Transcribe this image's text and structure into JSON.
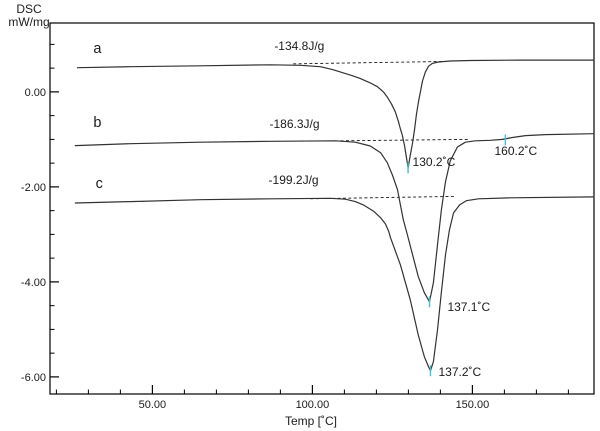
{
  "chart_data": {
    "type": "line",
    "title": "",
    "ylabel_line1": "DSC",
    "ylabel_line2": "mW/mg",
    "xlabel": "Temp [˚C]",
    "axes": {
      "xlim": [
        18,
        188
      ],
      "ylim": [
        -6.36,
        1.45
      ],
      "x_major_ticks": [
        {
          "t": 50,
          "label": "50.00"
        },
        {
          "t": 100,
          "label": "100.00"
        },
        {
          "t": 150,
          "label": "150.00"
        }
      ],
      "x_minor": {
        "from": 20,
        "to": 180,
        "step": 10
      },
      "y_major_ticks": [
        {
          "v": 0,
          "label": "0.00"
        },
        {
          "v": -2,
          "label": "-2.00"
        },
        {
          "v": -4,
          "label": "-4.00"
        },
        {
          "v": -6,
          "label": "-6.00"
        }
      ],
      "y_minor": {
        "from": -6,
        "to": 1,
        "step": 0.5
      },
      "grid": false
    },
    "series": [
      {
        "name": "a",
        "enthalpy": "-134.8J/g",
        "peak": "130.2˚C",
        "points": [
          [
            26.6,
            0.51
          ],
          [
            43.1,
            0.53
          ],
          [
            65,
            0.55
          ],
          [
            86.9,
            0.57
          ],
          [
            96.3,
            0.56
          ],
          [
            102.5,
            0.53
          ],
          [
            106.3,
            0.47
          ],
          [
            109.7,
            0.4
          ],
          [
            112.5,
            0.34
          ],
          [
            115,
            0.28
          ],
          [
            118.1,
            0.19
          ],
          [
            120.3,
            0.11
          ],
          [
            122.2,
            0.0
          ],
          [
            123.4,
            -0.11
          ],
          [
            124.7,
            -0.25
          ],
          [
            125.9,
            -0.42
          ],
          [
            126.9,
            -0.63
          ],
          [
            127.5,
            -0.78
          ],
          [
            128.1,
            -0.91
          ],
          [
            128.8,
            -1.14
          ],
          [
            129.4,
            -1.39
          ],
          [
            129.9,
            -1.6
          ],
          [
            130.6,
            -1.33
          ],
          [
            131.3,
            -1.07
          ],
          [
            131.9,
            -0.8
          ],
          [
            132.5,
            -0.48
          ],
          [
            133.1,
            -0.23
          ],
          [
            133.8,
            0.02
          ],
          [
            134.4,
            0.23
          ],
          [
            135.3,
            0.42
          ],
          [
            136.3,
            0.54
          ],
          [
            137.5,
            0.6
          ],
          [
            139.4,
            0.63
          ],
          [
            143.1,
            0.65
          ],
          [
            149.4,
            0.66
          ],
          [
            165,
            0.67
          ],
          [
            188,
            0.67
          ]
        ]
      },
      {
        "name": "b",
        "enthalpy": "-186.3J/g",
        "peak": "137.1˚C",
        "transition": "160.2˚C",
        "points": [
          [
            25.9,
            -1.13
          ],
          [
            43.1,
            -1.09
          ],
          [
            65,
            -1.06
          ],
          [
            86.9,
            -1.04
          ],
          [
            107.2,
            -1.03
          ],
          [
            113.4,
            -1.06
          ],
          [
            118.1,
            -1.14
          ],
          [
            121.3,
            -1.28
          ],
          [
            123.4,
            -1.49
          ],
          [
            125,
            -1.75
          ],
          [
            126.6,
            -2.06
          ],
          [
            127.5,
            -2.38
          ],
          [
            128.4,
            -2.69
          ],
          [
            129.7,
            -3.01
          ],
          [
            131.3,
            -3.43
          ],
          [
            133.1,
            -3.89
          ],
          [
            135,
            -4.23
          ],
          [
            136.6,
            -4.42
          ],
          [
            137.8,
            -4.02
          ],
          [
            139.1,
            -3.22
          ],
          [
            140.3,
            -2.48
          ],
          [
            141.6,
            -1.89
          ],
          [
            143.1,
            -1.45
          ],
          [
            145.3,
            -1.16
          ],
          [
            147.8,
            -1.06
          ],
          [
            150.9,
            -1.03
          ],
          [
            155.6,
            -1.02
          ],
          [
            159.4,
            -1.0
          ],
          [
            162.5,
            -0.96
          ],
          [
            166.6,
            -0.92
          ],
          [
            172.8,
            -0.9
          ],
          [
            188,
            -0.88
          ]
        ]
      },
      {
        "name": "c",
        "enthalpy": "-199.2J/g",
        "peak": "137.2˚C",
        "points": [
          [
            25.9,
            -2.34
          ],
          [
            43.1,
            -2.31
          ],
          [
            65,
            -2.27
          ],
          [
            86.9,
            -2.25
          ],
          [
            105.6,
            -2.24
          ],
          [
            110.3,
            -2.26
          ],
          [
            113.4,
            -2.31
          ],
          [
            115.9,
            -2.38
          ],
          [
            119.1,
            -2.51
          ],
          [
            121.3,
            -2.65
          ],
          [
            122.8,
            -2.78
          ],
          [
            123.8,
            -2.93
          ],
          [
            124.4,
            -3.07
          ],
          [
            127.5,
            -3.64
          ],
          [
            130.6,
            -4.38
          ],
          [
            133.1,
            -5.12
          ],
          [
            135,
            -5.58
          ],
          [
            136.3,
            -5.79
          ],
          [
            136.9,
            -5.87
          ],
          [
            137.8,
            -5.68
          ],
          [
            139.1,
            -5.01
          ],
          [
            140.3,
            -4.21
          ],
          [
            141.6,
            -3.43
          ],
          [
            142.8,
            -2.91
          ],
          [
            144.1,
            -2.55
          ],
          [
            146,
            -2.38
          ],
          [
            148.1,
            -2.29
          ],
          [
            151.9,
            -2.25
          ],
          [
            161.9,
            -2.23
          ],
          [
            188,
            -2.21
          ]
        ]
      }
    ],
    "baselines": [
      {
        "series": "a",
        "from": [
          94,
          0.59
        ],
        "to": [
          141,
          0.64
        ]
      },
      {
        "series": "b",
        "from": [
          108.8,
          -1.03
        ],
        "to": [
          148.8,
          -1.0
        ]
      },
      {
        "series": "c",
        "from": [
          99.4,
          -2.25
        ],
        "to": [
          144.7,
          -2.2
        ]
      }
    ],
    "peak_markers": [
      {
        "t": 129.9,
        "v": -1.6
      },
      {
        "t": 136.6,
        "v": -4.42
      },
      {
        "t": 136.9,
        "v": -5.87
      },
      {
        "t": 160.3,
        "v": -1.01
      }
    ],
    "annotations": [
      {
        "text": "a",
        "t": 32.8,
        "v": 0.82,
        "anchor": "middle",
        "size": 14.5
      },
      {
        "text": "b",
        "t": 32.8,
        "v": -0.74,
        "anchor": "middle",
        "size": 14.5
      },
      {
        "text": "c",
        "t": 33.4,
        "v": -2.02,
        "anchor": "middle",
        "size": 14.5
      },
      {
        "text": "-134.8J/g",
        "t": 88.1,
        "v": 0.88,
        "anchor": "start",
        "size": 12
      },
      {
        "text": "-186.3J/g",
        "t": 86.6,
        "v": -0.76,
        "anchor": "start",
        "size": 12
      },
      {
        "text": "-199.2J/g",
        "t": 86.3,
        "v": -1.94,
        "anchor": "start",
        "size": 12
      },
      {
        "text": "130.2˚C",
        "t": 131.3,
        "v": -1.56,
        "anchor": "start",
        "size": 12
      },
      {
        "text": "160.2˚C",
        "t": 156.9,
        "v": -1.33,
        "anchor": "start",
        "size": 12
      },
      {
        "text": "137.1˚C",
        "t": 142.2,
        "v": -4.61,
        "anchor": "start",
        "size": 12
      },
      {
        "text": "137.2˚C",
        "t": 139.4,
        "v": -5.98,
        "anchor": "start",
        "size": 12
      }
    ]
  },
  "colors": {
    "background": "#ffffff",
    "frame": "#000000",
    "curve": "#323232",
    "baseline_dash": "#1a1a1a",
    "peak_marker": "#3fbfcf",
    "text": "#1b1b1b"
  }
}
